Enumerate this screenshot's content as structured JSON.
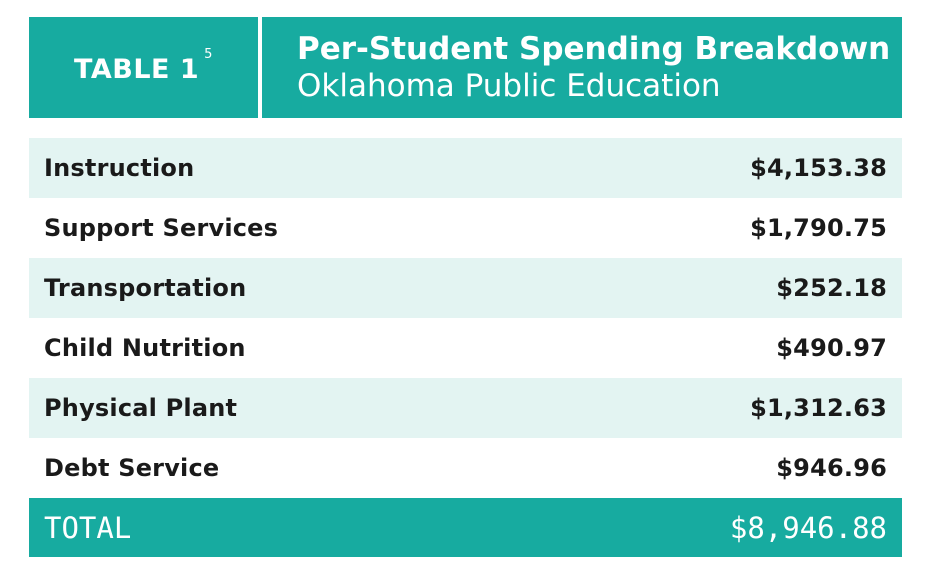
{
  "header": {
    "badge_label": "TABLE 1",
    "badge_note": "5",
    "title": "Per-Student Spending Breakdown",
    "subtitle": "Oklahoma Public Education"
  },
  "rows": [
    {
      "label": "Instruction",
      "value": "$4,153.38"
    },
    {
      "label": "Support Services",
      "value": "$1,790.75"
    },
    {
      "label": "Transportation",
      "value": "$252.18"
    },
    {
      "label": "Child Nutrition",
      "value": "$490.97"
    },
    {
      "label": "Physical Plant",
      "value": "$1,312.63"
    },
    {
      "label": "Debt Service",
      "value": "$946.96"
    }
  ],
  "total": {
    "label": "TOTAL",
    "value": "$8,946.88"
  },
  "colors": {
    "accent": "#17aba0",
    "row_shade": "#e3f4f2",
    "text": "#1a1a1a"
  }
}
